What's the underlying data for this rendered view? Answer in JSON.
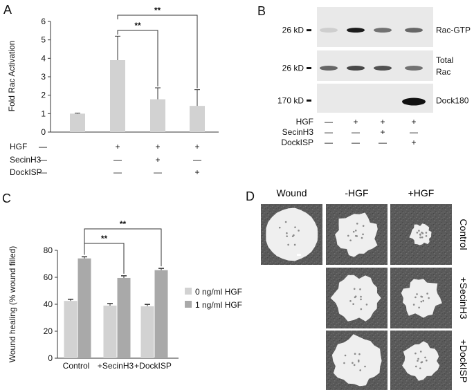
{
  "colors": {
    "bar_light": "#d2d2d2",
    "bar_dark": "#a9a9a9",
    "blot_bg": "#e9e9e9",
    "band": "#111111",
    "micro_bg": "#5a5a5a",
    "wound": "#efefef"
  },
  "panels": {
    "A": "A",
    "B": "B",
    "C": "C",
    "D": "D"
  },
  "chart_data": [
    {
      "type": "bar",
      "ylabel": "Fold Rac Activation",
      "ylim": [
        0,
        6
      ],
      "yticks": [
        "0",
        "1",
        "2",
        "3",
        "4",
        "5",
        "6"
      ],
      "series": [
        {
          "values": [
            1.0,
            3.9,
            1.78,
            1.42
          ],
          "errors": [
            0.03,
            1.3,
            0.62,
            0.88
          ]
        }
      ],
      "significance": [
        "**",
        "**"
      ],
      "treatment_rows": [
        {
          "label": "HGF",
          "signs": [
            "—",
            "+",
            "+",
            "+"
          ]
        },
        {
          "label": "SecinH3",
          "signs": [
            "—",
            "—",
            "+",
            "—"
          ]
        },
        {
          "label": "DockISP",
          "signs": [
            "—",
            "—",
            "—",
            "+"
          ]
        }
      ]
    },
    {
      "type": "bar",
      "ylabel": "Wound healing (% wound filled)",
      "ylim": [
        0,
        80
      ],
      "yticks": [
        "0",
        "20",
        "40",
        "60",
        "80"
      ],
      "categories": [
        "Control",
        "+SecinH3",
        "+DockISP"
      ],
      "series": [
        {
          "name": "0 ng/ml HGF",
          "values": [
            42.5,
            39,
            38.5
          ],
          "errors": [
            1.2,
            1.5,
            1.4
          ]
        },
        {
          "name": "1 ng/ml HGF",
          "values": [
            74,
            59.5,
            65.3
          ],
          "errors": [
            1.2,
            1.6,
            1.3
          ]
        }
      ],
      "significance": [
        "**",
        "**"
      ],
      "legend": "right"
    }
  ],
  "blot": {
    "markers": [
      "26 kD",
      "26 kD",
      "170 kD"
    ],
    "row_labels": [
      "Rac-GTP",
      "Total\nRac",
      "Dock180"
    ],
    "row_label_lines": [
      [
        "Rac-GTP"
      ],
      [
        "Total",
        "Rac"
      ],
      [
        "Dock180"
      ]
    ],
    "bands": [
      [
        0.12,
        0.95,
        0.55,
        0.6
      ],
      [
        0.6,
        0.75,
        0.7,
        0.55
      ],
      [
        0,
        0,
        0,
        1.0
      ]
    ],
    "treatment_rows": [
      {
        "label": "HGF",
        "signs": [
          "—",
          "+",
          "+",
          "+"
        ]
      },
      {
        "label": "SecinH3",
        "signs": [
          "—",
          "—",
          "+",
          "—"
        ]
      },
      {
        "label": "DockISP",
        "signs": [
          "—",
          "—",
          "—",
          "+"
        ]
      }
    ]
  },
  "micro": {
    "col_headers": [
      "Wound",
      "-HGF",
      "+HGF"
    ],
    "row_labels": [
      "Control",
      "+SecinH3",
      "+DockISP"
    ]
  }
}
